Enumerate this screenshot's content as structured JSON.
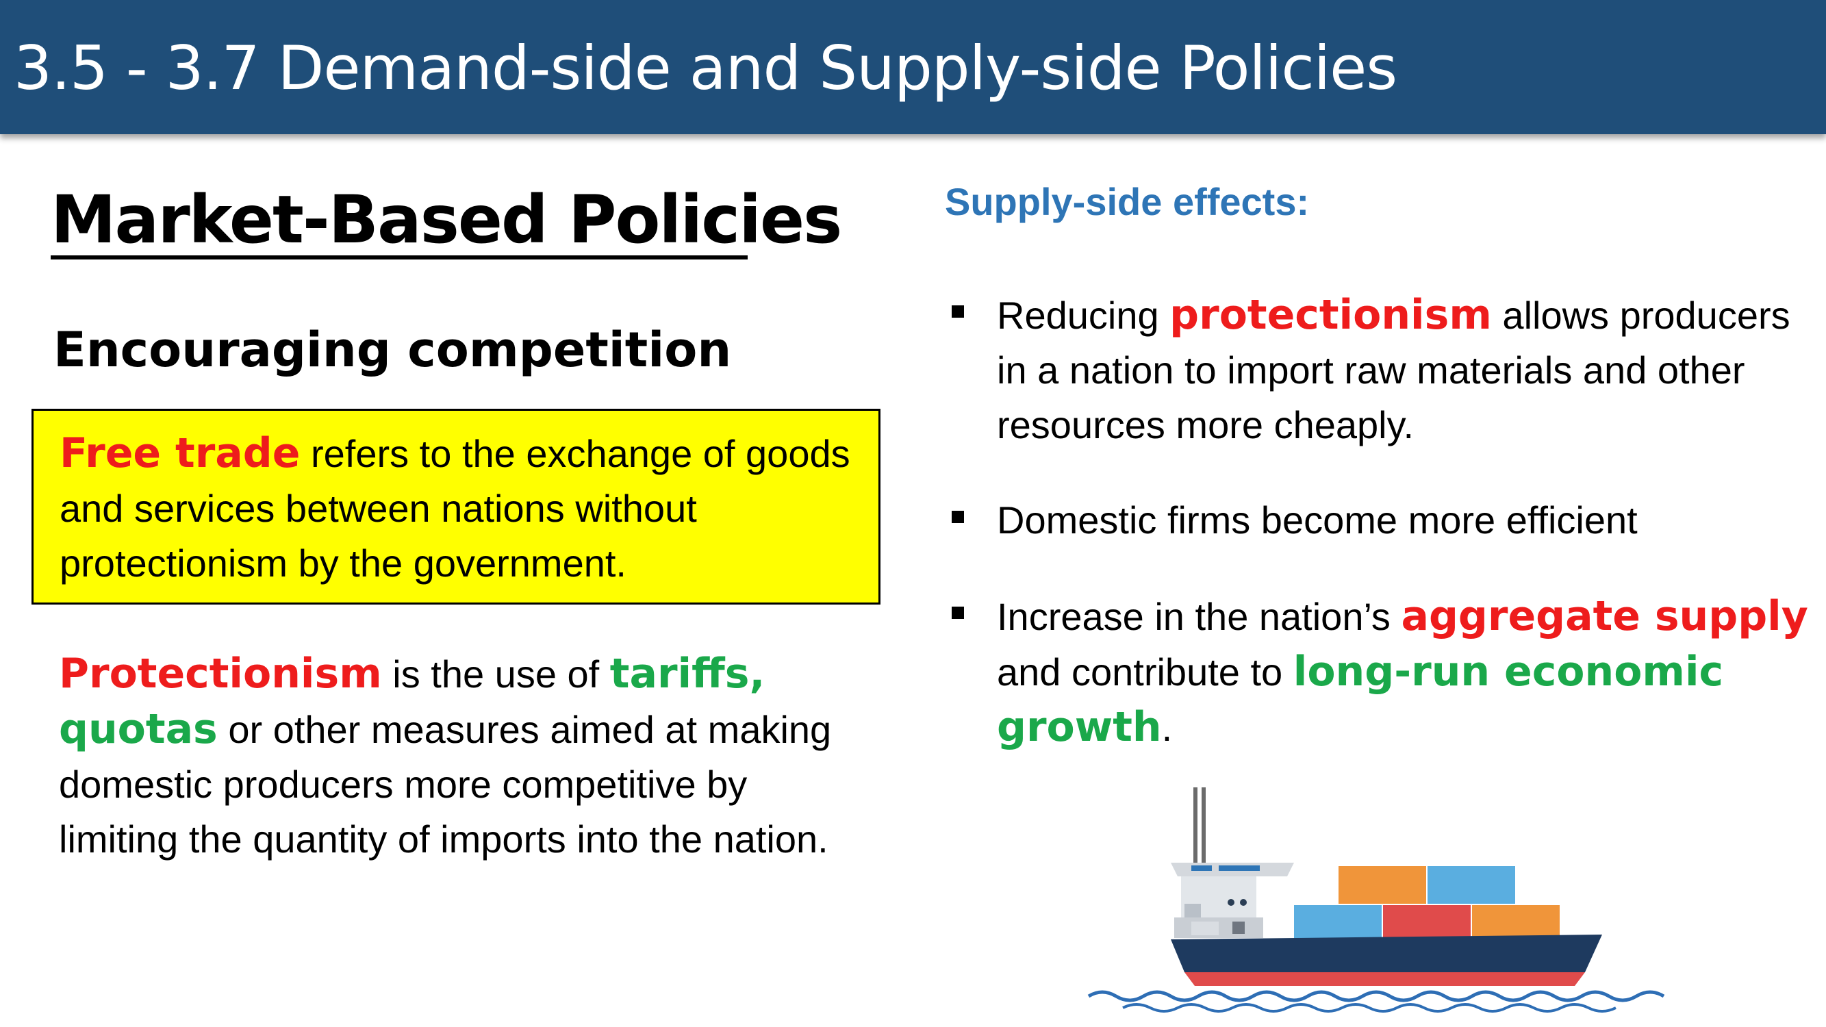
{
  "header": {
    "title": "3.5 - 3.7 Demand-side and Supply-side Policies"
  },
  "left": {
    "section_title": "Market-Based Policies",
    "subheading": "Encouraging competition",
    "definition": {
      "term": "Free trade",
      "text": " refers to the exchange of goods and services between nations without protectionism by the government."
    },
    "protectionism": {
      "term": "Protectionism",
      "text_1": " is the use of ",
      "highlight": "tariffs, quotas",
      "text_2": " or other measures aimed at making domestic producers more competitive by limiting the quantity of imports into the nation."
    }
  },
  "right": {
    "heading": "Supply-side effects:",
    "bullets": [
      {
        "pre": "Reducing ",
        "term": "protectionism",
        "post": " allows producers in a nation to import raw materials and other resources more cheaply."
      },
      {
        "text": "Domestic firms become more efficient"
      },
      {
        "pre": "Increase in the nation’s ",
        "term": "aggregate supply",
        "mid": " and contribute to ",
        "highlight": "long-run economic growth",
        "post": "."
      }
    ]
  },
  "illustration": {
    "icon": "cargo-ship-icon",
    "colors": {
      "hull": "#1e3a5f",
      "hull_bottom": "#e04b4b",
      "container_orange": "#f0953a",
      "container_blue": "#5aaee0",
      "container_red": "#e04b4b",
      "cabin": "#dfe3e8",
      "water": "#2e6eb5"
    }
  }
}
